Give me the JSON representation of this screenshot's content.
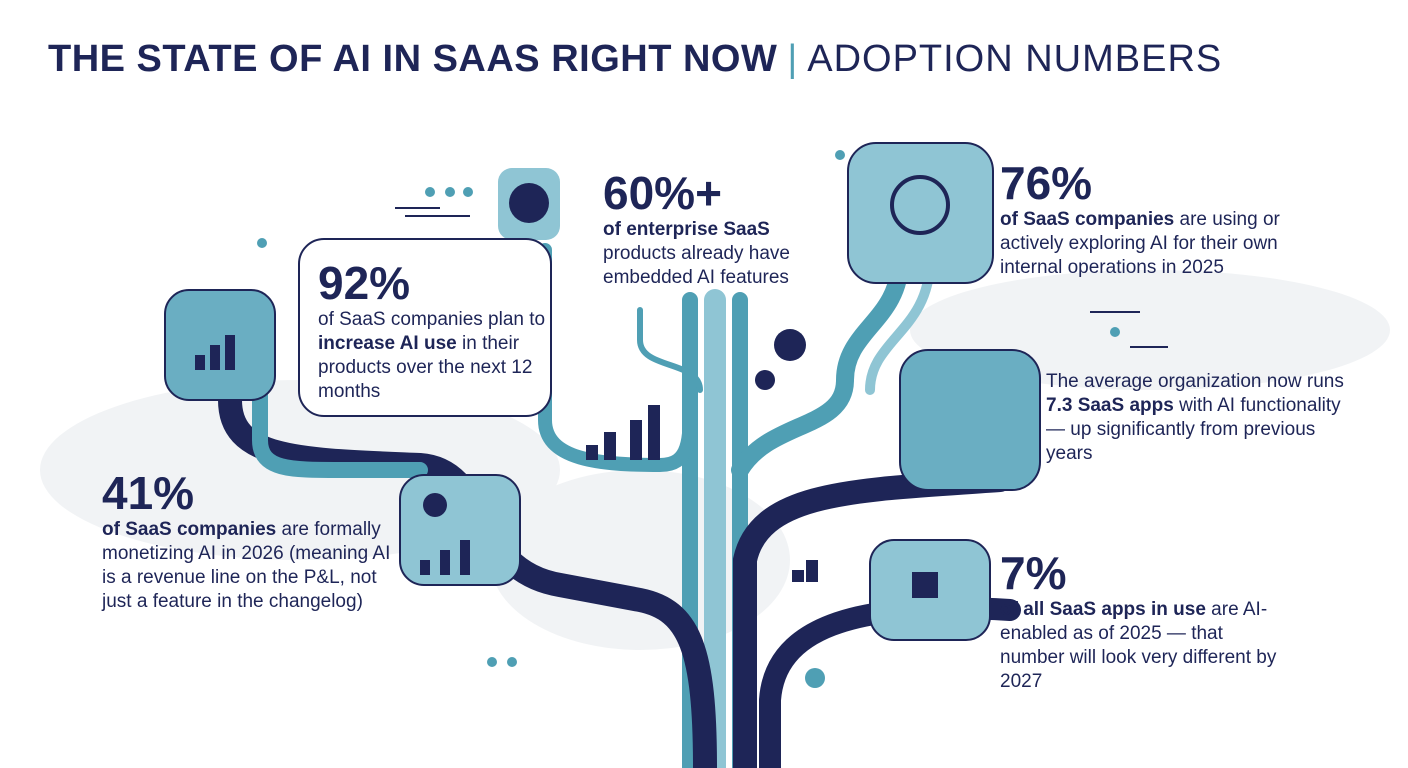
{
  "header": {
    "title": "THE STATE OF AI IN SAAS RIGHT NOW",
    "subtitle": "ADOPTION NUMBERS"
  },
  "stats": [
    {
      "headline": "92%",
      "body": [
        {
          "text": "of SaaS companies plan to ",
          "bold": false
        },
        {
          "text": "increase AI use",
          "bold": true
        },
        {
          "text": " in their products over the next 12 months",
          "bold": false
        }
      ]
    },
    {
      "headline": "60%+",
      "body": [
        {
          "text": "of enterprise SaaS",
          "bold": true
        },
        {
          "text": " products already have embedded AI features",
          "bold": false
        }
      ]
    },
    {
      "headline": "76%",
      "body": [
        {
          "text": "of SaaS companies",
          "bold": true
        },
        {
          "text": " are using or actively exploring AI for their own internal operations in 2025",
          "bold": false
        }
      ]
    },
    {
      "body": [
        {
          "text": "The average organization now runs ",
          "bold": false
        },
        {
          "text": "7.3 SaaS apps",
          "bold": true
        },
        {
          "text": " with AI functionality — up significantly from previous years",
          "bold": false
        }
      ]
    },
    {
      "headline": "41%",
      "body": [
        {
          "text": "of SaaS companies",
          "bold": true
        },
        {
          "text": " are formally monetizing AI in 2026 (meaning AI is a revenue line on the P&L, not just a feature in the changelog)",
          "bold": false
        }
      ]
    },
    {
      "headline": "7%",
      "body": [
        {
          "text": "of all SaaS apps in use",
          "bold": true
        },
        {
          "text": " are AI-enabled as of 2025 — that number will look very different by 2027",
          "bold": false
        }
      ]
    }
  ]
}
